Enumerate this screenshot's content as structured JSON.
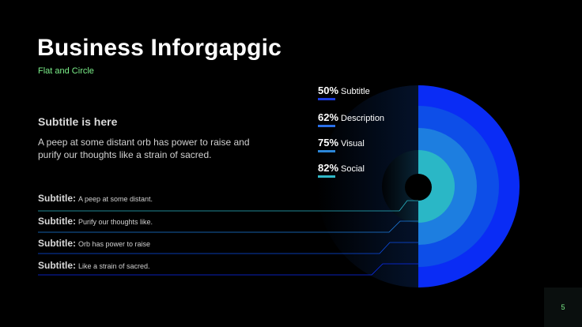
{
  "title": "Business Inforgapgic",
  "subtitle": "Flat and Circle",
  "section_heading": "Subtitle is here",
  "paragraph": "A peep at some distant orb has power to raise and purify our thoughts like a strain of sacred.",
  "rows": [
    {
      "label": "Subtitle:",
      "text": "A peep at some distant."
    },
    {
      "label": "Subtitle:",
      "text": "Purify our thoughts like."
    },
    {
      "label": "Subtitle:",
      "text": "Orb has power to raise"
    },
    {
      "label": "Subtitle:",
      "text": "Like a strain of sacred."
    }
  ],
  "stats": [
    {
      "percent": "50%",
      "label": "Subtitle",
      "color": "#1a3be0"
    },
    {
      "percent": "62%",
      "label": "Description",
      "color": "#2a6fe8"
    },
    {
      "percent": "75%",
      "label": "Visual",
      "color": "#2b86d8"
    },
    {
      "percent": "82%",
      "label": "Social",
      "color": "#30b8c8"
    }
  ],
  "page_number": "5",
  "colors": {
    "ring_outer": "#0a2cf5",
    "ring_2": "#0d4ee8",
    "ring_3": "#1d7ee0",
    "ring_inner": "#2ab7c6",
    "center": "#000000",
    "accent_green": "#7CF08A"
  }
}
